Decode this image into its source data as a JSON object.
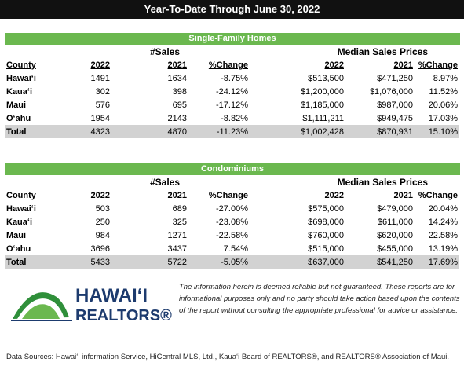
{
  "header": {
    "title": "Year-To-Date Through June 30, 2022"
  },
  "sections": [
    {
      "title": "Single-Family Homes",
      "group_headers": [
        "#Sales",
        "Median Sales Prices"
      ],
      "columns": [
        "County",
        "2022",
        "2021",
        "%Change",
        "2022",
        "2021",
        "%Change"
      ],
      "rows": [
        [
          "Hawaiʻi",
          "1491",
          "1634",
          "-8.75%",
          "$513,500",
          "$471,250",
          "8.97%"
        ],
        [
          "Kauaʻi",
          "302",
          "398",
          "-24.12%",
          "$1,200,000",
          "$1,076,000",
          "11.52%"
        ],
        [
          "Maui",
          "576",
          "695",
          "-17.12%",
          "$1,185,000",
          "$987,000",
          "20.06%"
        ],
        [
          "Oʻahu",
          "1954",
          "2143",
          "-8.82%",
          "$1,111,211",
          "$949,475",
          "17.03%"
        ],
        [
          "Total",
          "4323",
          "4870",
          "-11.23%",
          "$1,002,428",
          "$870,931",
          "15.10%"
        ]
      ]
    },
    {
      "title": "Condominiums",
      "group_headers": [
        "#Sales",
        "Median Sales Prices"
      ],
      "columns": [
        "County",
        "2022",
        "2021",
        "%Change",
        "2022",
        "2021",
        "%Change"
      ],
      "rows": [
        [
          "Hawaiʻi",
          "503",
          "689",
          "-27.00%",
          "$575,000",
          "$479,000",
          "20.04%"
        ],
        [
          "Kauaʻi",
          "250",
          "325",
          "-23.08%",
          "$698,000",
          "$611,000",
          "14.24%"
        ],
        [
          "Maui",
          "984",
          "1271",
          "-22.58%",
          "$760,000",
          "$620,000",
          "22.58%"
        ],
        [
          "Oʻahu",
          "3696",
          "3437",
          "7.54%",
          "$515,000",
          "$455,000",
          "13.19%"
        ],
        [
          "Total",
          "5433",
          "5722",
          "-5.05%",
          "$637,000",
          "$541,250",
          "17.69%"
        ]
      ]
    }
  ],
  "logo": {
    "line1": "HAWAIʻI",
    "line2": "REALTORS®"
  },
  "disclaimer": "The information herein is deemed reliable but not guaranteed. These reports are for informational purposes only and no party should take action based upon the contents of the report without consulting the appropriate professional for advice or assistance.",
  "footer": "Data Sources: Hawaiʻi information Service, HiCentral MLS, Ltd., Kauaʻi Board of REALTORS®, and REALTORS® Association of Maui."
}
